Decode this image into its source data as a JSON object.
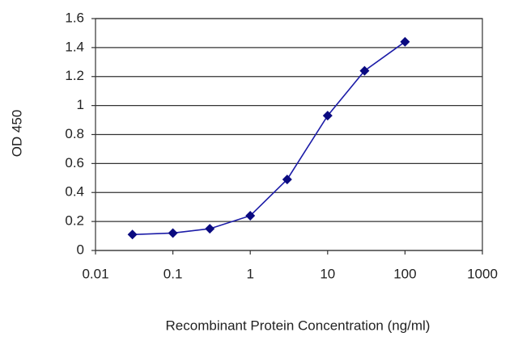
{
  "chart_data": {
    "type": "scatter-line",
    "x_label": "Recombinant Protein Concentration (ng/ml)",
    "y_label": "OD 450",
    "x": [
      0.03,
      0.1,
      0.3,
      1,
      3,
      10,
      30,
      100
    ],
    "series": [
      {
        "color": "#1c1ca8",
        "values": [
          0.11,
          0.12,
          0.15,
          0.24,
          0.49,
          0.93,
          1.24,
          1.44
        ]
      }
    ],
    "xscale": "log",
    "xlim": [
      0.01,
      1000
    ],
    "xticks": [
      0.01,
      0.1,
      1,
      10,
      100,
      1000
    ],
    "ylim": [
      0,
      1.6
    ],
    "yticks": [
      0,
      0.2,
      0.4,
      0.6,
      0.8,
      1,
      1.2,
      1.4,
      1.6
    ],
    "grid": true
  }
}
